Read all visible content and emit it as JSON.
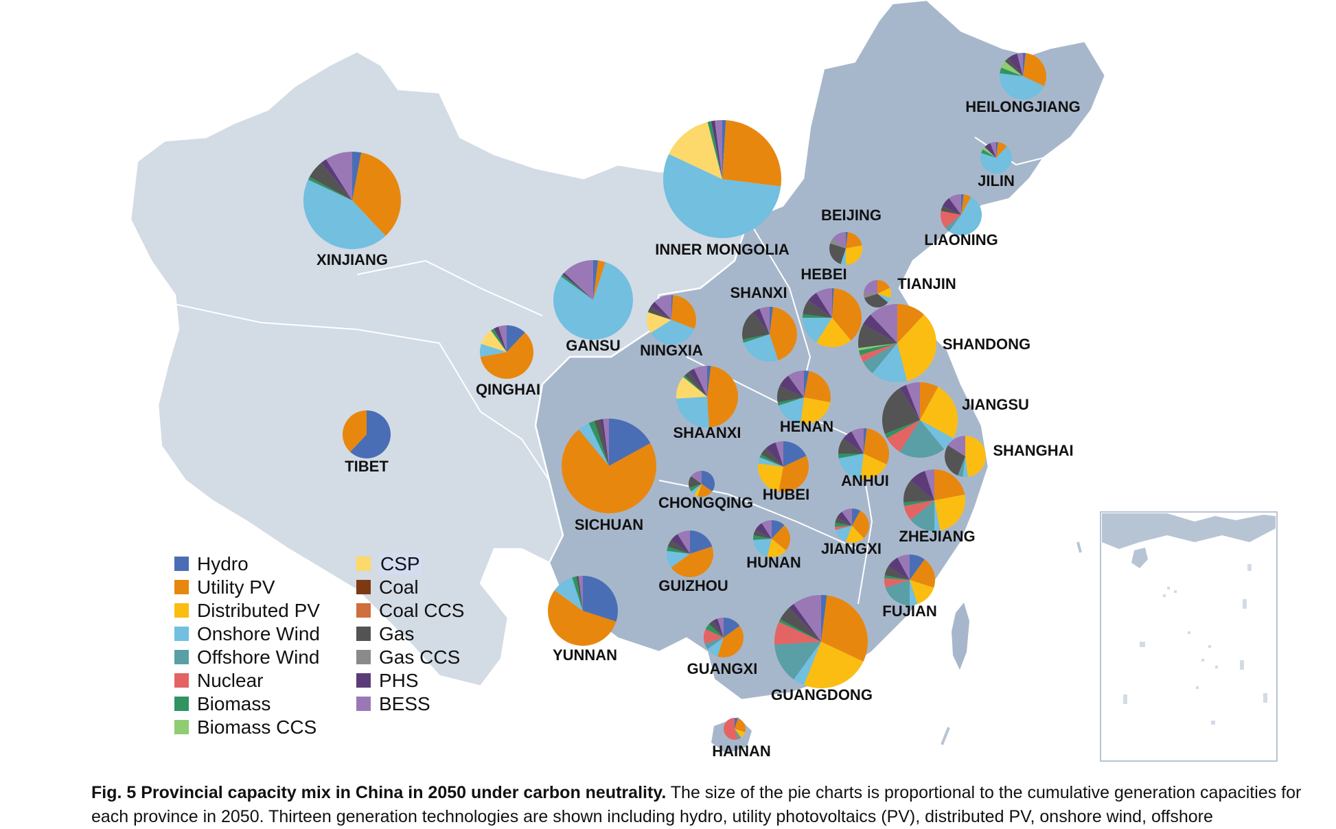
{
  "colors": {
    "Hydro": "#4a6eb5",
    "Utility PV": "#e8870e",
    "Distributed PV": "#fbbd12",
    "Onshore Wind": "#72bfe0",
    "Offshore Wind": "#5a9ea6",
    "Nuclear": "#e46464",
    "Biomass": "#2f9460",
    "Biomass CCS": "#8fcc72",
    "CSP": "#fcd96a",
    "Coal": "#7d3a12",
    "Coal CCS": "#cf6e3e",
    "Gas": "#545454",
    "Gas CCS": "#8a8a8a",
    "PHS": "#5c3c78",
    "BESS": "#9a78b6"
  },
  "legend": {
    "items": [
      {
        "label": "Hydro",
        "color": "#4a6eb5"
      },
      {
        "label": "CSP",
        "color": "#fcd96a",
        "highlight": true
      },
      {
        "label": "Utility PV",
        "color": "#e8870e"
      },
      {
        "label": "Coal",
        "color": "#7d3a12"
      },
      {
        "label": "Distributed PV",
        "color": "#fbbd12"
      },
      {
        "label": "Coal CCS",
        "color": "#cf6e3e"
      },
      {
        "label": "Onshore Wind",
        "color": "#72bfe0"
      },
      {
        "label": "Gas",
        "color": "#545454"
      },
      {
        "label": "Offshore Wind",
        "color": "#5a9ea6"
      },
      {
        "label": "Gas CCS",
        "color": "#8a8a8a"
      },
      {
        "label": "Nuclear",
        "color": "#e46464"
      },
      {
        "label": "PHS",
        "color": "#5c3c78"
      },
      {
        "label": "Biomass",
        "color": "#2f9460"
      },
      {
        "label": "BESS",
        "color": "#9a78b6"
      },
      {
        "label": "Biomass CCS",
        "color": "#8fcc72"
      }
    ]
  },
  "provinces": [
    {
      "name": "HEILONGJIANG",
      "mix": [
        [
          "Hydro",
          2
        ],
        [
          "Utility PV",
          30
        ],
        [
          "Onshore Wind",
          45
        ],
        [
          "Biomass",
          4
        ],
        [
          "Biomass CCS",
          5
        ],
        [
          "Gas",
          3
        ],
        [
          "PHS",
          7
        ],
        [
          "BESS",
          4
        ]
      ]
    },
    {
      "name": "JILIN",
      "mix": [
        [
          "Hydro",
          2
        ],
        [
          "Utility PV",
          10
        ],
        [
          "Onshore Wind",
          68
        ],
        [
          "Biomass",
          4
        ],
        [
          "Biomass CCS",
          3
        ],
        [
          "PHS",
          7
        ],
        [
          "BESS",
          6
        ]
      ]
    },
    {
      "name": "LIAONING",
      "mix": [
        [
          "Hydro",
          2
        ],
        [
          "Utility PV",
          6
        ],
        [
          "Onshore Wind",
          52
        ],
        [
          "Offshore Wind",
          4
        ],
        [
          "Nuclear",
          14
        ],
        [
          "Gas",
          4
        ],
        [
          "PHS",
          8
        ],
        [
          "BESS",
          10
        ]
      ]
    },
    {
      "name": "BEIJING",
      "mix": [
        [
          "Hydro",
          2
        ],
        [
          "Utility PV",
          20
        ],
        [
          "Distributed PV",
          28
        ],
        [
          "Onshore Wind",
          5
        ],
        [
          "Gas",
          25
        ],
        [
          "Gas CCS",
          5
        ],
        [
          "BESS",
          15
        ]
      ]
    },
    {
      "name": "TIANJIN",
      "mix": [
        [
          "Utility PV",
          18
        ],
        [
          "Distributed PV",
          12
        ],
        [
          "Onshore Wind",
          6
        ],
        [
          "Gas",
          34
        ],
        [
          "Gas CCS",
          6
        ],
        [
          "BESS",
          24
        ]
      ]
    },
    {
      "name": "HEBEI",
      "mix": [
        [
          "Hydro",
          1
        ],
        [
          "Utility PV",
          38
        ],
        [
          "Distributed PV",
          20
        ],
        [
          "Onshore Wind",
          16
        ],
        [
          "Biomass",
          2
        ],
        [
          "Gas",
          8
        ],
        [
          "PHS",
          6
        ],
        [
          "BESS",
          9
        ]
      ]
    },
    {
      "name": "SHANXI",
      "mix": [
        [
          "Hydro",
          2
        ],
        [
          "Utility PV",
          43
        ],
        [
          "Onshore Wind",
          25
        ],
        [
          "Biomass",
          2
        ],
        [
          "Gas",
          18
        ],
        [
          "PHS",
          4
        ],
        [
          "BESS",
          6
        ]
      ]
    },
    {
      "name": "INNER MONGOLIA",
      "mix": [
        [
          "Hydro",
          1
        ],
        [
          "Utility PV",
          26
        ],
        [
          "Onshore Wind",
          55
        ],
        [
          "CSP",
          14
        ],
        [
          "Biomass",
          1
        ],
        [
          "PHS",
          1
        ],
        [
          "BESS",
          2
        ]
      ]
    },
    {
      "name": "XINJIANG",
      "mix": [
        [
          "Hydro",
          3
        ],
        [
          "Utility PV",
          35
        ],
        [
          "Onshore Wind",
          44
        ],
        [
          "Biomass",
          1
        ],
        [
          "Gas",
          6
        ],
        [
          "PHS",
          2
        ],
        [
          "BESS",
          9
        ]
      ]
    },
    {
      "name": "GANSU",
      "mix": [
        [
          "Hydro",
          2
        ],
        [
          "Utility PV",
          3
        ],
        [
          "Onshore Wind",
          80
        ],
        [
          "Biomass",
          1
        ],
        [
          "PHS",
          1
        ],
        [
          "BESS",
          13
        ]
      ]
    },
    {
      "name": "NINGXIA",
      "mix": [
        [
          "Hydro",
          1
        ],
        [
          "Utility PV",
          30
        ],
        [
          "Onshore Wind",
          35
        ],
        [
          "CSP",
          14
        ],
        [
          "Gas",
          4
        ],
        [
          "PHS",
          4
        ],
        [
          "BESS",
          12
        ]
      ]
    },
    {
      "name": "QINGHAI",
      "mix": [
        [
          "Hydro",
          12
        ],
        [
          "Utility PV",
          60
        ],
        [
          "Onshore Wind",
          8
        ],
        [
          "CSP",
          10
        ],
        [
          "Biomass",
          2
        ],
        [
          "PHS",
          3
        ],
        [
          "BESS",
          5
        ]
      ]
    },
    {
      "name": "TIBET",
      "mix": [
        [
          "Hydro",
          62
        ],
        [
          "Utility PV",
          38
        ]
      ]
    },
    {
      "name": "SHAANXI",
      "mix": [
        [
          "Hydro",
          2
        ],
        [
          "Utility PV",
          47
        ],
        [
          "Onshore Wind",
          25
        ],
        [
          "CSP",
          12
        ],
        [
          "Biomass",
          1
        ],
        [
          "Gas",
          3
        ],
        [
          "PHS",
          3
        ],
        [
          "BESS",
          7
        ]
      ]
    },
    {
      "name": "SHANDONG",
      "mix": [
        [
          "Utility PV",
          12
        ],
        [
          "Distributed PV",
          34
        ],
        [
          "Onshore Wind",
          15
        ],
        [
          "Offshore Wind",
          6
        ],
        [
          "Nuclear",
          3
        ],
        [
          "Biomass",
          2
        ],
        [
          "Biomass CCS",
          1
        ],
        [
          "Gas",
          10
        ],
        [
          "PHS",
          5
        ],
        [
          "BESS",
          12
        ]
      ]
    },
    {
      "name": "HENAN",
      "mix": [
        [
          "Hydro",
          3
        ],
        [
          "Utility PV",
          25
        ],
        [
          "Distributed PV",
          24
        ],
        [
          "Onshore Wind",
          18
        ],
        [
          "Biomass",
          2
        ],
        [
          "Gas",
          10
        ],
        [
          "PHS",
          8
        ],
        [
          "BESS",
          10
        ]
      ]
    },
    {
      "name": "JIANGSU",
      "mix": [
        [
          "Utility PV",
          8
        ],
        [
          "Distributed PV",
          25
        ],
        [
          "Onshore Wind",
          6
        ],
        [
          "Offshore Wind",
          20
        ],
        [
          "Nuclear",
          8
        ],
        [
          "Biomass",
          2
        ],
        [
          "Gas",
          22
        ],
        [
          "PHS",
          3
        ],
        [
          "BESS",
          6
        ]
      ]
    },
    {
      "name": "SHANGHAI",
      "mix": [
        [
          "Distributed PV",
          48
        ],
        [
          "Onshore Wind",
          4
        ],
        [
          "Offshore Wind",
          4
        ],
        [
          "Gas",
          28
        ],
        [
          "BESS",
          16
        ]
      ]
    },
    {
      "name": "ANHUI",
      "mix": [
        [
          "Hydro",
          2
        ],
        [
          "Utility PV",
          30
        ],
        [
          "Distributed PV",
          20
        ],
        [
          "Onshore Wind",
          20
        ],
        [
          "Biomass",
          3
        ],
        [
          "Gas",
          10
        ],
        [
          "PHS",
          7
        ],
        [
          "BESS",
          8
        ]
      ]
    },
    {
      "name": "HUBEI",
      "mix": [
        [
          "Hydro",
          18
        ],
        [
          "Utility PV",
          35
        ],
        [
          "Distributed PV",
          24
        ],
        [
          "Onshore Wind",
          4
        ],
        [
          "Biomass",
          2
        ],
        [
          "Gas",
          5
        ],
        [
          "PHS",
          7
        ],
        [
          "BESS",
          5
        ]
      ]
    },
    {
      "name": "CHONGQING",
      "mix": [
        [
          "Hydro",
          35
        ],
        [
          "Utility PV",
          20
        ],
        [
          "Distributed PV",
          5
        ],
        [
          "Onshore Wind",
          5
        ],
        [
          "Biomass",
          5
        ],
        [
          "Gas",
          15
        ],
        [
          "BESS",
          15
        ]
      ]
    },
    {
      "name": "SICHUAN",
      "mix": [
        [
          "Hydro",
          17
        ],
        [
          "Utility PV",
          72
        ],
        [
          "Onshore Wind",
          4
        ],
        [
          "Biomass",
          2
        ],
        [
          "Gas",
          2
        ],
        [
          "PHS",
          1
        ],
        [
          "BESS",
          2
        ]
      ]
    },
    {
      "name": "ZHEJIANG",
      "mix": [
        [
          "Utility PV",
          22
        ],
        [
          "Distributed PV",
          25
        ],
        [
          "Onshore Wind",
          3
        ],
        [
          "Offshore Wind",
          14
        ],
        [
          "Nuclear",
          8
        ],
        [
          "Biomass",
          2
        ],
        [
          "Gas",
          12
        ],
        [
          "PHS",
          9
        ],
        [
          "BESS",
          5
        ]
      ]
    },
    {
      "name": "JIANGXI",
      "mix": [
        [
          "Hydro",
          8
        ],
        [
          "Utility PV",
          30
        ],
        [
          "Distributed PV",
          18
        ],
        [
          "Onshore Wind",
          15
        ],
        [
          "Nuclear",
          3
        ],
        [
          "Biomass",
          4
        ],
        [
          "Gas",
          5
        ],
        [
          "PHS",
          7
        ],
        [
          "BESS",
          10
        ]
      ]
    },
    {
      "name": "HUNAN",
      "mix": [
        [
          "Hydro",
          12
        ],
        [
          "Utility PV",
          24
        ],
        [
          "Distributed PV",
          18
        ],
        [
          "Onshore Wind",
          20
        ],
        [
          "Biomass",
          4
        ],
        [
          "Gas",
          5
        ],
        [
          "PHS",
          8
        ],
        [
          "BESS",
          9
        ]
      ]
    },
    {
      "name": "GUIZHOU",
      "mix": [
        [
          "Hydro",
          20
        ],
        [
          "Utility PV",
          45
        ],
        [
          "Onshore Wind",
          12
        ],
        [
          "Biomass",
          3
        ],
        [
          "Gas",
          5
        ],
        [
          "PHS",
          6
        ],
        [
          "BESS",
          9
        ]
      ]
    },
    {
      "name": "YUNNAN",
      "mix": [
        [
          "Hydro",
          30
        ],
        [
          "Utility PV",
          55
        ],
        [
          "Onshore Wind",
          10
        ],
        [
          "Biomass",
          2
        ],
        [
          "Gas",
          1
        ],
        [
          "BESS",
          2
        ]
      ]
    },
    {
      "name": "FUJIAN",
      "mix": [
        [
          "Hydro",
          10
        ],
        [
          "Utility PV",
          20
        ],
        [
          "Distributed PV",
          15
        ],
        [
          "Onshore Wind",
          5
        ],
        [
          "Offshore Wind",
          20
        ],
        [
          "Nuclear",
          6
        ],
        [
          "Biomass",
          2
        ],
        [
          "Gas",
          6
        ],
        [
          "PHS",
          8
        ],
        [
          "BESS",
          8
        ]
      ]
    },
    {
      "name": "GUANGXI",
      "mix": [
        [
          "Hydro",
          15
        ],
        [
          "Utility PV",
          40
        ],
        [
          "Onshore Wind",
          10
        ],
        [
          "Offshore Wind",
          5
        ],
        [
          "Nuclear",
          12
        ],
        [
          "Biomass",
          5
        ],
        [
          "Gas",
          4
        ],
        [
          "PHS",
          4
        ],
        [
          "BESS",
          5
        ]
      ]
    },
    {
      "name": "GUANGDONG",
      "mix": [
        [
          "Hydro",
          2
        ],
        [
          "Utility PV",
          30
        ],
        [
          "Distributed PV",
          24
        ],
        [
          "Onshore Wind",
          4
        ],
        [
          "Offshore Wind",
          14
        ],
        [
          "Nuclear",
          8
        ],
        [
          "Biomass",
          1
        ],
        [
          "Gas",
          5
        ],
        [
          "PHS",
          2
        ],
        [
          "BESS",
          10
        ]
      ]
    },
    {
      "name": "HAINAN",
      "mix": [
        [
          "Hydro",
          5
        ],
        [
          "Utility PV",
          25
        ],
        [
          "Distributed PV",
          10
        ],
        [
          "Offshore Wind",
          5
        ],
        [
          "Nuclear",
          55
        ]
      ]
    }
  ],
  "caption": {
    "title": "Fig. 5 Provincial capacity mix in China in 2050 under carbon neutrality.",
    "text": " The size of the pie charts is proportional to the cumulative generation capacities for each province in 2050. Thirteen generation technologies are shown including hydro, utility photovoltaics (PV), distributed PV, onshore wind, offshore"
  }
}
